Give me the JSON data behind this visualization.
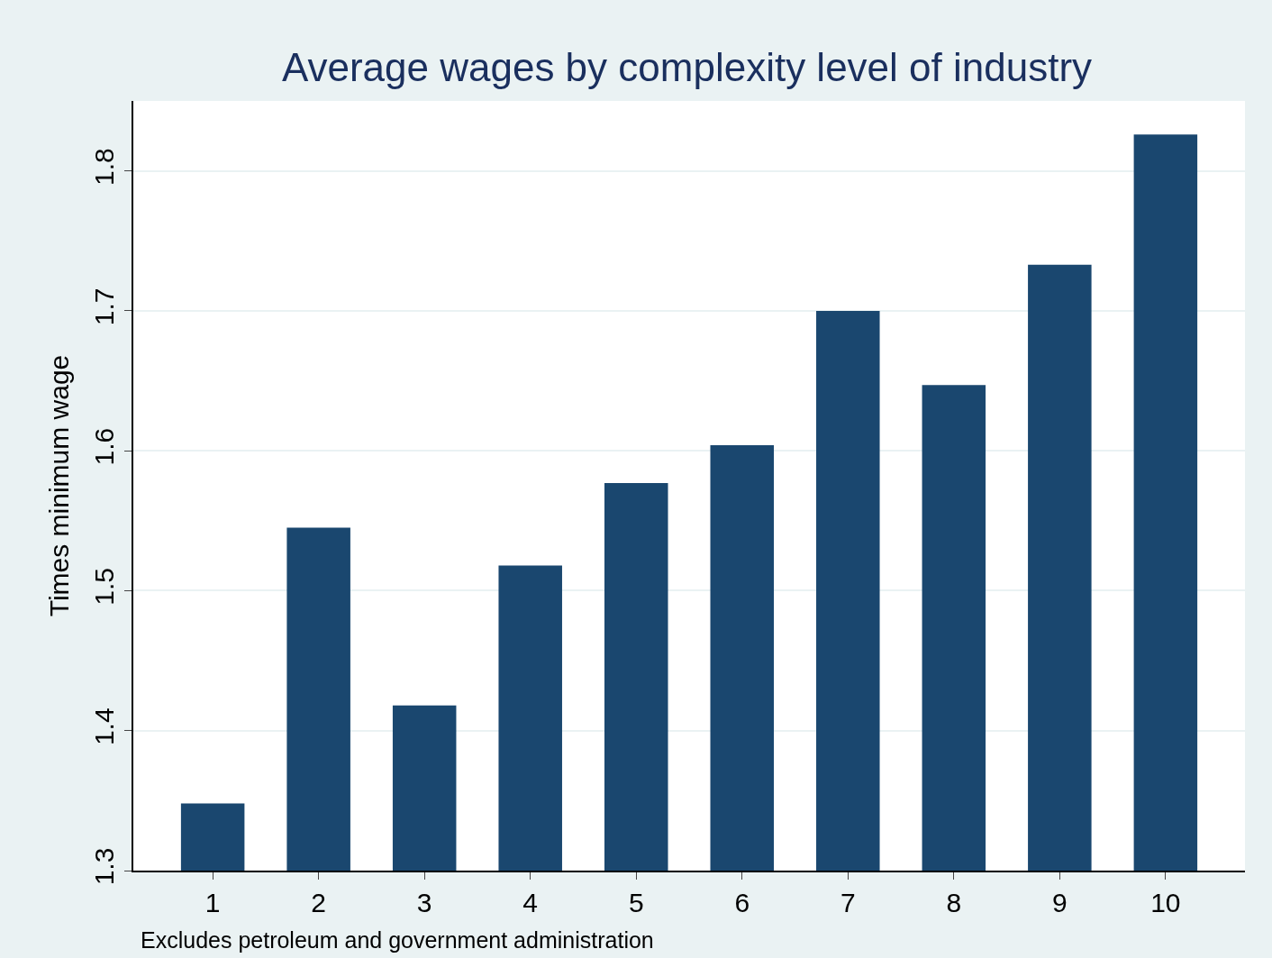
{
  "chart_data": {
    "type": "bar",
    "title": "Average wages by complexity level of industry",
    "ylabel": "Times minimum wage",
    "categories": [
      "1",
      "2",
      "3",
      "4",
      "5",
      "6",
      "7",
      "8",
      "9",
      "10"
    ],
    "values": [
      1.348,
      1.545,
      1.418,
      1.518,
      1.577,
      1.604,
      1.7,
      1.647,
      1.733,
      1.826
    ],
    "color": "#1a476f",
    "ylim": [
      1.3,
      1.85
    ],
    "yticks": [
      1.3,
      1.4,
      1.5,
      1.6,
      1.7,
      1.8
    ],
    "grid": "y",
    "annotations": [
      "Excludes petroleum and government administration"
    ]
  }
}
